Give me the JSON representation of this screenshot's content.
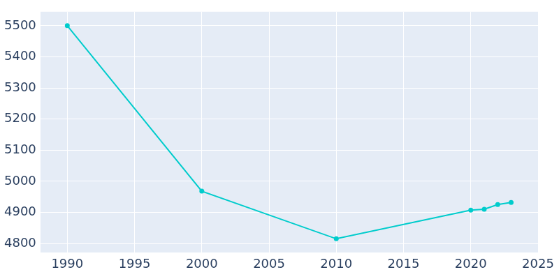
{
  "chart_data": {
    "type": "line",
    "x": [
      1990,
      2000,
      2010,
      2020,
      2021,
      2022,
      2023
    ],
    "values": [
      5500,
      4968,
      4815,
      4907,
      4910,
      4925,
      4932
    ],
    "color": "#00cccc",
    "marker": "circle",
    "xlim": [
      1988,
      2025
    ],
    "xticks": [
      1990,
      1995,
      2000,
      2005,
      2010,
      2015,
      2020,
      2025
    ],
    "ylim": [
      4770,
      5545
    ],
    "yticks": [
      4800,
      4900,
      5000,
      5100,
      5200,
      5300,
      5400,
      5500
    ],
    "grid": true
  }
}
